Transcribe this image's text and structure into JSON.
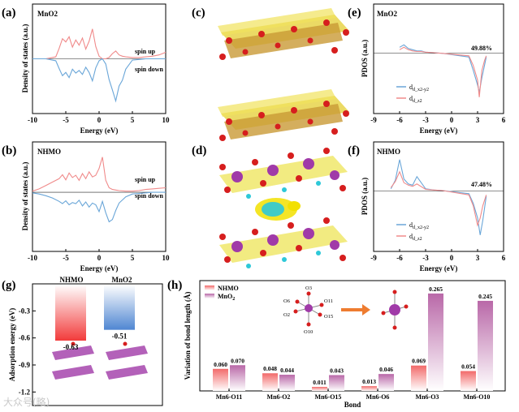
{
  "colors": {
    "spin_up": "#f08a8a",
    "spin_down": "#6aa6d8",
    "nhmo": "#f07070",
    "mno2": "#c48ab8",
    "ads_nhmo": "#f24b4b",
    "ads_mno2": "#5e93d6",
    "mn": "#a03aa8",
    "o": "#d61e1e",
    "iso_yellow": "#f2e000",
    "iso_cyan": "#2ec8d8",
    "arrow": "#ee7c30"
  },
  "panels": {
    "a": "(a)",
    "b": "(b)",
    "c": "(c)",
    "d": "(d)",
    "e": "(e)",
    "f": "(f)",
    "g": "(g)",
    "h": "(h)"
  },
  "chart_data": [
    {
      "id": "a",
      "type": "line",
      "title": "MnO2",
      "ylabel": "Density of states (a.u.)",
      "xlabel": "Energy (eV)",
      "xlim": [
        -10,
        10
      ],
      "xticks": [
        "-10",
        "-5",
        "0",
        "5",
        "10"
      ],
      "series": [
        {
          "name": "spin up",
          "x": [
            -10,
            -8,
            -6.5,
            -6,
            -5.5,
            -5,
            -4.5,
            -4,
            -3.5,
            -3,
            -2.5,
            -2,
            -1.5,
            -1,
            -0.5,
            0,
            0.5,
            1,
            1.5,
            2,
            2.5,
            3,
            3.5,
            4,
            5,
            6,
            7,
            8,
            9,
            10
          ],
          "values": [
            0,
            0,
            0.3,
            1.6,
            3.1,
            2.6,
            3.4,
            1.8,
            2.9,
            2.1,
            3.2,
            1.5,
            2.7,
            4.6,
            1.9,
            0.4,
            0,
            0,
            0.2,
            0.8,
            1.2,
            0.6,
            0.4,
            0.3,
            0.2,
            0.2,
            0.3,
            0.4,
            0.6,
            1.0
          ]
        },
        {
          "name": "spin down",
          "x": [
            -10,
            -8,
            -6.5,
            -6,
            -5.5,
            -5,
            -4.5,
            -4,
            -3.5,
            -3,
            -2.5,
            -2,
            -1.5,
            -1,
            -0.5,
            0,
            0.5,
            1,
            1.5,
            2,
            2.5,
            3,
            3.5,
            4,
            5,
            6,
            7,
            8,
            9,
            10
          ],
          "values": [
            0,
            0,
            -0.3,
            -1.5,
            -2.6,
            -2.1,
            -2.9,
            -1.6,
            -2.2,
            -1.8,
            -2.4,
            -1.3,
            -2.1,
            -3.4,
            -1.4,
            -0.3,
            0,
            -0.8,
            -3.2,
            -4.8,
            -6.5,
            -4.2,
            -3.3,
            -1.6,
            -0.2,
            -0.1,
            0,
            0,
            0,
            0
          ]
        }
      ],
      "annotations": [
        "spin up",
        "spin down"
      ]
    },
    {
      "id": "b",
      "type": "line",
      "title": "NHMO",
      "ylabel": "Density of states (a.u.)",
      "xlabel": "Energy (eV)",
      "xlim": [
        -10,
        10
      ],
      "xticks": [
        "-10",
        "-5",
        "0",
        "5",
        "10"
      ],
      "series": [
        {
          "name": "spin up",
          "x": [
            -10,
            -9,
            -8,
            -7,
            -6,
            -5.5,
            -5,
            -4.5,
            -4,
            -3.5,
            -3,
            -2.5,
            -2,
            -1.5,
            -1,
            -0.5,
            0,
            0.5,
            1,
            1.5,
            2,
            2.5,
            3,
            4,
            5,
            6,
            7,
            8,
            9,
            10
          ],
          "values": [
            0.2,
            0.6,
            1.2,
            1.8,
            2.4,
            3.1,
            2.2,
            3.4,
            2.6,
            3.0,
            2.1,
            3.3,
            2.4,
            3.6,
            2.7,
            3.0,
            4.2,
            6.2,
            2.1,
            0.8,
            0.5,
            0.4,
            0.3,
            0.2,
            0.2,
            0.3,
            0.5,
            0.6,
            0.7,
            0.8
          ]
        },
        {
          "name": "spin down",
          "x": [
            -10,
            -9,
            -8,
            -7,
            -6,
            -5.5,
            -5,
            -4.5,
            -4,
            -3.5,
            -3,
            -2.5,
            -2,
            -1.5,
            -1,
            -0.5,
            0,
            0.5,
            1,
            1.5,
            2,
            2.5,
            3,
            4,
            5,
            6,
            7,
            8,
            9,
            10
          ],
          "values": [
            -0.1,
            -0.3,
            -0.6,
            -1.0,
            -1.6,
            -2.0,
            -1.5,
            -2.2,
            -1.8,
            -2.0,
            -1.4,
            -2.4,
            -1.7,
            -2.6,
            -1.9,
            -2.2,
            -3.4,
            -1.6,
            -3.6,
            -5.2,
            -4.8,
            -3.2,
            -1.9,
            -0.8,
            -0.3,
            -0.2,
            -0.1,
            0,
            0,
            0
          ]
        }
      ],
      "annotations": [
        "spin up",
        "spin down"
      ]
    },
    {
      "id": "e",
      "type": "line",
      "title": "MnO2",
      "ylabel": "PDOS (a.u.)",
      "xlabel": "Energy (eV)",
      "xlim": [
        -9,
        6
      ],
      "xticks": [
        "-9",
        "-6",
        "-3",
        "0",
        "3",
        "6"
      ],
      "annotation": "49.88%",
      "legend": [
        "d_x2-y2",
        "d_z2"
      ],
      "series": [
        {
          "name": "d_x2-y2",
          "x": [
            -6,
            -5.5,
            -5,
            -4.5,
            -4,
            -3.5,
            -3,
            -2,
            -1,
            2,
            2.5,
            3,
            3.2,
            3.5,
            3.8,
            4
          ],
          "values": [
            0.5,
            0.7,
            0.4,
            0.3,
            0.2,
            0.2,
            0.1,
            0.05,
            0,
            -0.3,
            -1.4,
            -2.6,
            -3.2,
            -2.0,
            -1.0,
            -0.3
          ]
        },
        {
          "name": "d_z2",
          "x": [
            -6,
            -5.5,
            -5,
            -4.5,
            -4,
            -3.5,
            -3,
            -2,
            -1,
            2,
            2.5,
            3,
            3.2,
            3.5,
            3.8,
            4
          ],
          "values": [
            0.3,
            0.5,
            0.3,
            0.2,
            0.15,
            0.15,
            0.1,
            0.05,
            0,
            -0.2,
            -1.0,
            -2.2,
            -3.6,
            -1.4,
            -0.6,
            -0.2
          ]
        }
      ]
    },
    {
      "id": "f",
      "type": "line",
      "title": "NHMO",
      "ylabel": "PDOS (a.u.)",
      "xlabel": "Energy (eV)",
      "xlim": [
        -9,
        6
      ],
      "xticks": [
        "-9",
        "-6",
        "-3",
        "0",
        "3",
        "6"
      ],
      "annotation": "47.48%",
      "legend": [
        "d_x2-y2",
        "d_z2"
      ],
      "series": [
        {
          "name": "d_x2-y2",
          "x": [
            -7,
            -6.5,
            -6,
            -5.5,
            -5,
            -4.5,
            -4,
            -3,
            -2,
            -1,
            2,
            2.5,
            3,
            3.3,
            3.6,
            4
          ],
          "values": [
            0.2,
            0.9,
            2.6,
            1.0,
            0.6,
            0.5,
            1.2,
            0.2,
            0.1,
            0.05,
            -0.2,
            -1.0,
            -2.2,
            -3.6,
            -2.4,
            -0.4
          ]
        },
        {
          "name": "d_z2",
          "x": [
            -7,
            -6.5,
            -6,
            -5.5,
            -5,
            -4.5,
            -4,
            -3,
            -2,
            -1,
            2,
            2.5,
            3,
            3.3,
            3.6,
            4
          ],
          "values": [
            0.3,
            0.8,
            1.6,
            0.7,
            0.5,
            0.4,
            0.6,
            0.15,
            0.1,
            0.05,
            -0.3,
            -1.2,
            -2.8,
            -2.2,
            -1.2,
            -0.3
          ]
        }
      ]
    },
    {
      "id": "g",
      "type": "bar",
      "ylabel": "Adsorption energy (eV)",
      "ylim": [
        -1.35,
        0
      ],
      "yticks": [
        "-0.3",
        "-0.6",
        "-0.9",
        "-1.2"
      ],
      "categories": [
        "NHMO",
        "MnO2"
      ],
      "values": [
        -0.63,
        -0.51
      ],
      "labels": [
        "-0.63",
        "-0.51"
      ]
    },
    {
      "id": "h",
      "type": "bar",
      "ylabel": "Variation of bond length (Å)",
      "xlabel": "Bond",
      "ylim": [
        0,
        0.3
      ],
      "categories": [
        "Mn6-O11",
        "Mn6-O2",
        "Mn6-O15",
        "Mn6-O6",
        "Mn6-O3",
        "Mn6-O10"
      ],
      "series": [
        {
          "name": "NHMO",
          "values": [
            0.06,
            0.048,
            0.011,
            0.013,
            0.069,
            0.054
          ],
          "labels": [
            "0.060",
            "0.048",
            "0.011",
            "0.013",
            "0.069",
            "0.054"
          ]
        },
        {
          "name": "MnO2",
          "values": [
            0.07,
            0.044,
            0.043,
            0.046,
            0.265,
            0.245
          ],
          "labels": [
            "0.070",
            "0.044",
            "0.043",
            "0.046",
            "0.265",
            "0.245"
          ]
        }
      ],
      "inset_labels": [
        "O3",
        "O6",
        "O11",
        "O2",
        "O15",
        "O10"
      ]
    }
  ],
  "watermark": "大众号(略)"
}
